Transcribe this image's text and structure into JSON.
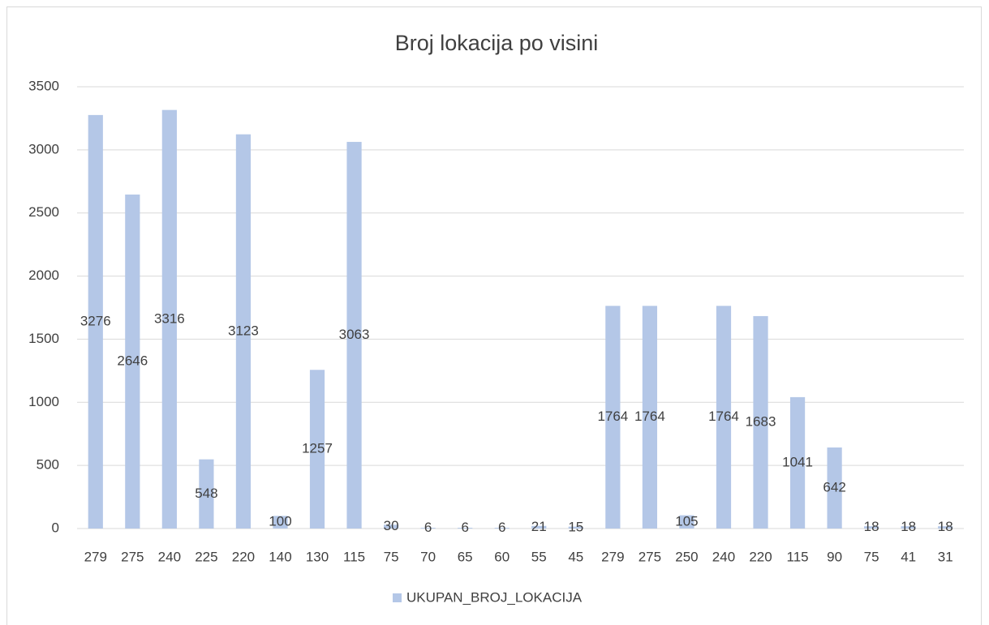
{
  "chart_data": {
    "type": "bar",
    "title": "Broj lokacija po visini",
    "categories": [
      "279",
      "275",
      "240",
      "225",
      "220",
      "140",
      "130",
      "115",
      "75",
      "70",
      "65",
      "60",
      "55",
      "45",
      "279",
      "275",
      "250",
      "240",
      "220",
      "115",
      "90",
      "75",
      "41",
      "31"
    ],
    "series": [
      {
        "name": "UKUPAN_BROJ_LOKACIJA",
        "color": "#b4c7e7",
        "values": [
          3276,
          2646,
          3316,
          548,
          3123,
          100,
          1257,
          3063,
          30,
          6,
          6,
          6,
          21,
          15,
          1764,
          1764,
          105,
          1764,
          1683,
          1041,
          642,
          18,
          18,
          18
        ]
      }
    ],
    "ylim": [
      0,
      3500
    ],
    "yticks": [
      0,
      500,
      1000,
      1500,
      2000,
      2500,
      3000,
      3500
    ],
    "grid": true,
    "legend": "bottom",
    "data_labels": true
  }
}
